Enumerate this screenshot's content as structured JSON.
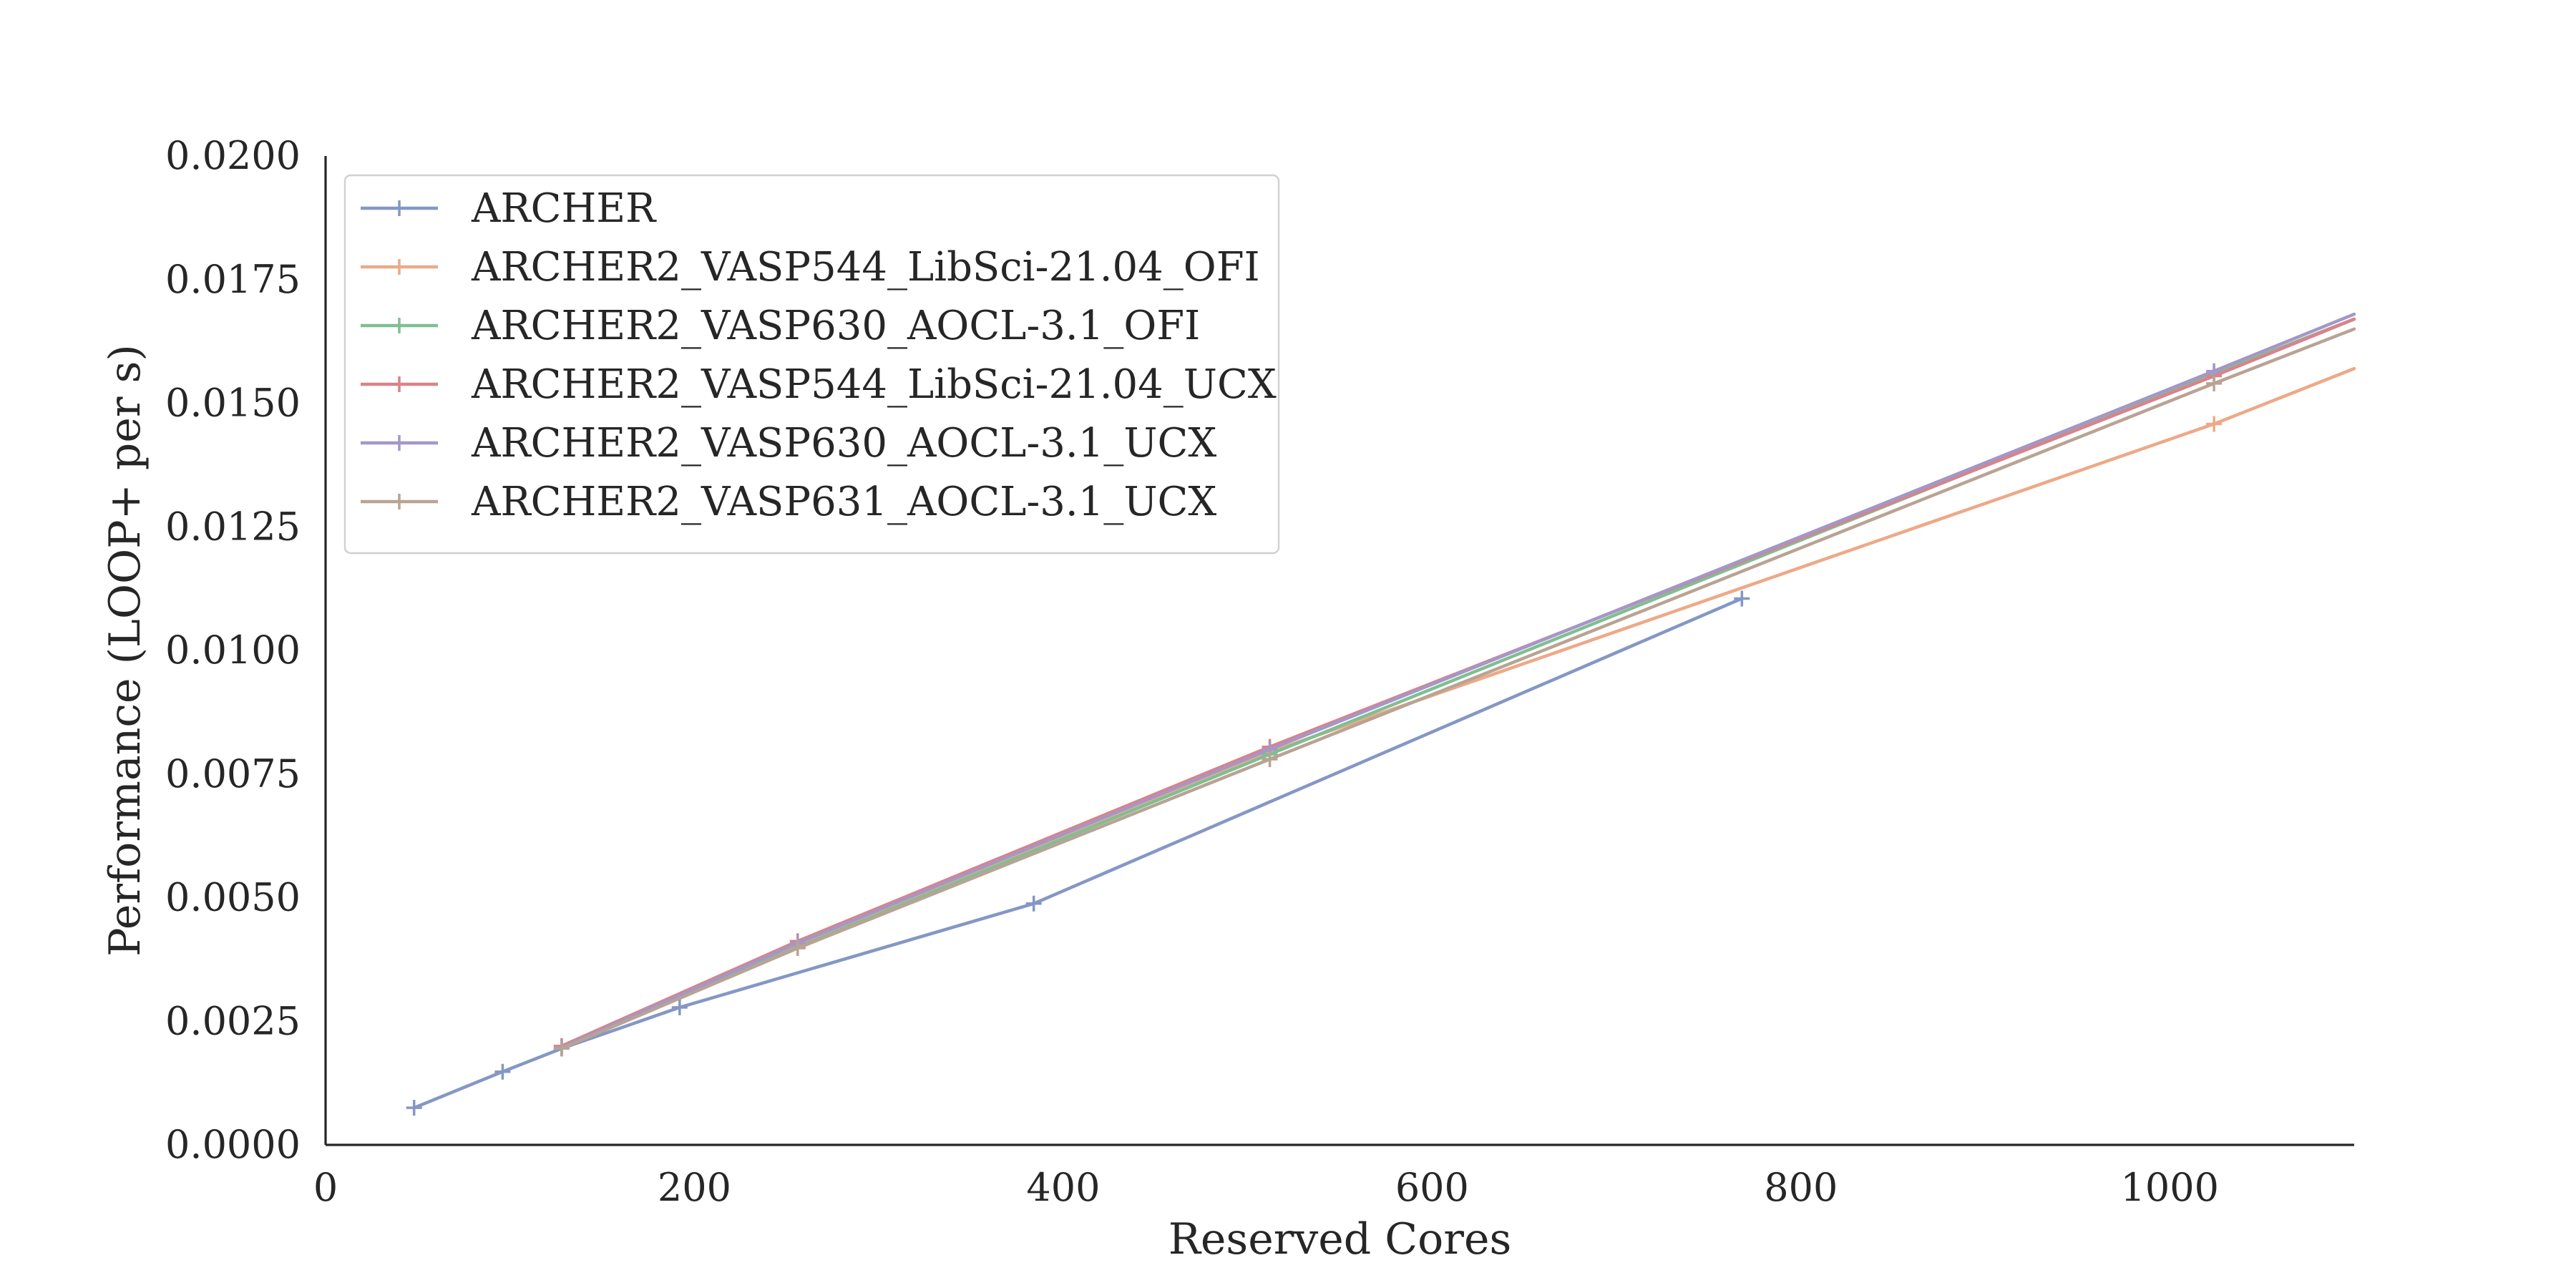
{
  "chart_data": {
    "type": "line",
    "title": "",
    "xlabel": "Reserved Cores",
    "ylabel": "Performance (LOOP+ per s)",
    "xlim": [
      0,
      1100
    ],
    "ylim": [
      0,
      0.02
    ],
    "x_ticks": [
      0,
      200,
      400,
      600,
      800,
      1000
    ],
    "x_tick_labels": [
      "0",
      "200",
      "400",
      "600",
      "800",
      "1000"
    ],
    "y_ticks": [
      0,
      0.0025,
      0.005,
      0.0075,
      0.01,
      0.0125,
      0.015,
      0.0175,
      0.02
    ],
    "y_tick_labels": [
      "0.0000",
      "0.0025",
      "0.0050",
      "0.0075",
      "0.0100",
      "0.0125",
      "0.0150",
      "0.0175",
      "0.0200"
    ],
    "grid": false,
    "legend_position": "upper-left",
    "marker": "+",
    "series": [
      {
        "name": "ARCHER",
        "color": "#8497c5",
        "points": [
          [
            48,
            0.00075
          ],
          [
            96,
            0.00148
          ],
          [
            128,
            0.00195
          ],
          [
            192,
            0.00278
          ],
          [
            384,
            0.00488
          ],
          [
            768,
            0.01105
          ]
        ]
      },
      {
        "name": "ARCHER2_VASP544_LibSci-21.04_OFI",
        "color": "#eda987",
        "points": [
          [
            128,
            0.00195
          ],
          [
            256,
            0.00405
          ],
          [
            512,
            0.00795
          ],
          [
            1024,
            0.01458
          ],
          [
            1100,
            0.0157
          ]
        ]
      },
      {
        "name": "ARCHER2_VASP630_AOCL-3.1_OFI",
        "color": "#7fbf91",
        "points": [
          [
            128,
            0.00195
          ],
          [
            256,
            0.004
          ],
          [
            512,
            0.0079
          ],
          [
            1024,
            0.0156
          ],
          [
            1100,
            0.0167
          ]
        ]
      },
      {
        "name": "ARCHER2_VASP544_LibSci-21.04_UCX",
        "color": "#d9838a",
        "points": [
          [
            128,
            0.002
          ],
          [
            256,
            0.00412
          ],
          [
            512,
            0.00805
          ],
          [
            1024,
            0.01555
          ],
          [
            1100,
            0.0167
          ]
        ]
      },
      {
        "name": "ARCHER2_VASP630_AOCL-3.1_UCX",
        "color": "#a497c7",
        "points": [
          [
            128,
            0.00197
          ],
          [
            256,
            0.00408
          ],
          [
            512,
            0.008
          ],
          [
            1024,
            0.01565
          ],
          [
            1100,
            0.0168
          ]
        ]
      },
      {
        "name": "ARCHER2_VASP631_AOCL-3.1_UCX",
        "color": "#b9a394",
        "points": [
          [
            128,
            0.00195
          ],
          [
            256,
            0.00398
          ],
          [
            512,
            0.0078
          ],
          [
            1024,
            0.0154
          ],
          [
            1100,
            0.0165
          ]
        ]
      }
    ]
  }
}
